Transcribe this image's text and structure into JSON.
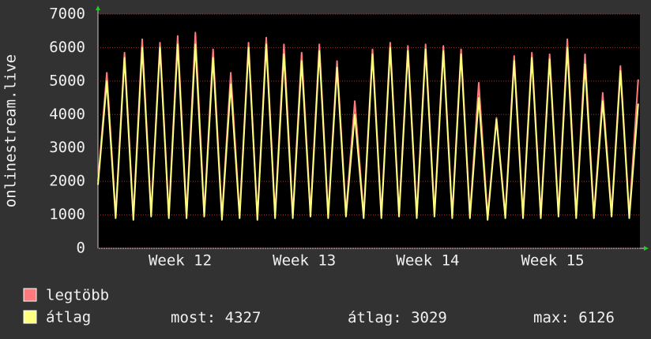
{
  "chart_data": {
    "type": "line",
    "ylabel": "onlinestream.live",
    "x": [
      0,
      0.5,
      1,
      1.5,
      2,
      2.5,
      3,
      3.5,
      4,
      4.5,
      5,
      5.5,
      6,
      6.5,
      7,
      7.5,
      8,
      8.5,
      9,
      9.5,
      10,
      10.5,
      11,
      11.5,
      12,
      12.5,
      13,
      13.5,
      14,
      14.5,
      15,
      15.5,
      16,
      16.5,
      17,
      17.5,
      18,
      18.5,
      19,
      19.5,
      20,
      20.5,
      21,
      21.5,
      22,
      22.5,
      23,
      23.5,
      24,
      24.5,
      25,
      25.5,
      26,
      26.5,
      27,
      27.5,
      28,
      28.5,
      29,
      29.5,
      30,
      30.5
    ],
    "series": [
      {
        "name": "legtöbb",
        "color": "#ff7b7b",
        "values": [
          2000,
          5250,
          1000,
          5850,
          950,
          6250,
          1050,
          6150,
          1000,
          6350,
          1000,
          6450,
          1050,
          5950,
          950,
          5250,
          1000,
          6150,
          900,
          6300,
          1000,
          6100,
          1000,
          5850,
          1050,
          6100,
          1000,
          5600,
          1050,
          4400,
          1000,
          5950,
          1000,
          6150,
          1050,
          6050,
          1000,
          6100,
          1050,
          6050,
          1000,
          5950,
          1000,
          4950,
          950,
          3900,
          1000,
          5750,
          1000,
          5850,
          1000,
          5800,
          1050,
          6250,
          1000,
          5800,
          1000,
          4650,
          1050,
          5450,
          1000,
          5050
        ]
      },
      {
        "name": "átlag",
        "color": "#ffff80",
        "values": [
          1900,
          5000,
          900,
          5700,
          850,
          6000,
          950,
          6000,
          900,
          6100,
          900,
          6100,
          950,
          5700,
          850,
          4900,
          900,
          6000,
          850,
          6100,
          900,
          5800,
          900,
          5600,
          950,
          5900,
          900,
          5400,
          950,
          4000,
          900,
          5800,
          900,
          6000,
          950,
          5900,
          900,
          5950,
          950,
          5900,
          900,
          5800,
          900,
          4500,
          850,
          3850,
          900,
          5600,
          900,
          5700,
          900,
          5650,
          950,
          6000,
          900,
          5500,
          900,
          4400,
          950,
          5300,
          900,
          4327
        ]
      }
    ],
    "stats": [
      {
        "label": "most:",
        "value": 4327
      },
      {
        "label": "átlag:",
        "value": 3029
      },
      {
        "label": "max:",
        "value": 6126
      }
    ],
    "xlim": [
      0,
      30.6
    ],
    "xticks": [
      {
        "value": 4.64,
        "label": "Week 12"
      },
      {
        "value": 11.65,
        "label": "Week 13"
      },
      {
        "value": 18.62,
        "label": "Week 14"
      },
      {
        "value": 25.67,
        "label": "Week 15"
      }
    ],
    "ylim": [
      0,
      7000
    ],
    "yticks": [
      0,
      1000,
      2000,
      3000,
      4000,
      5000,
      6000,
      7000
    ],
    "grid": true
  }
}
